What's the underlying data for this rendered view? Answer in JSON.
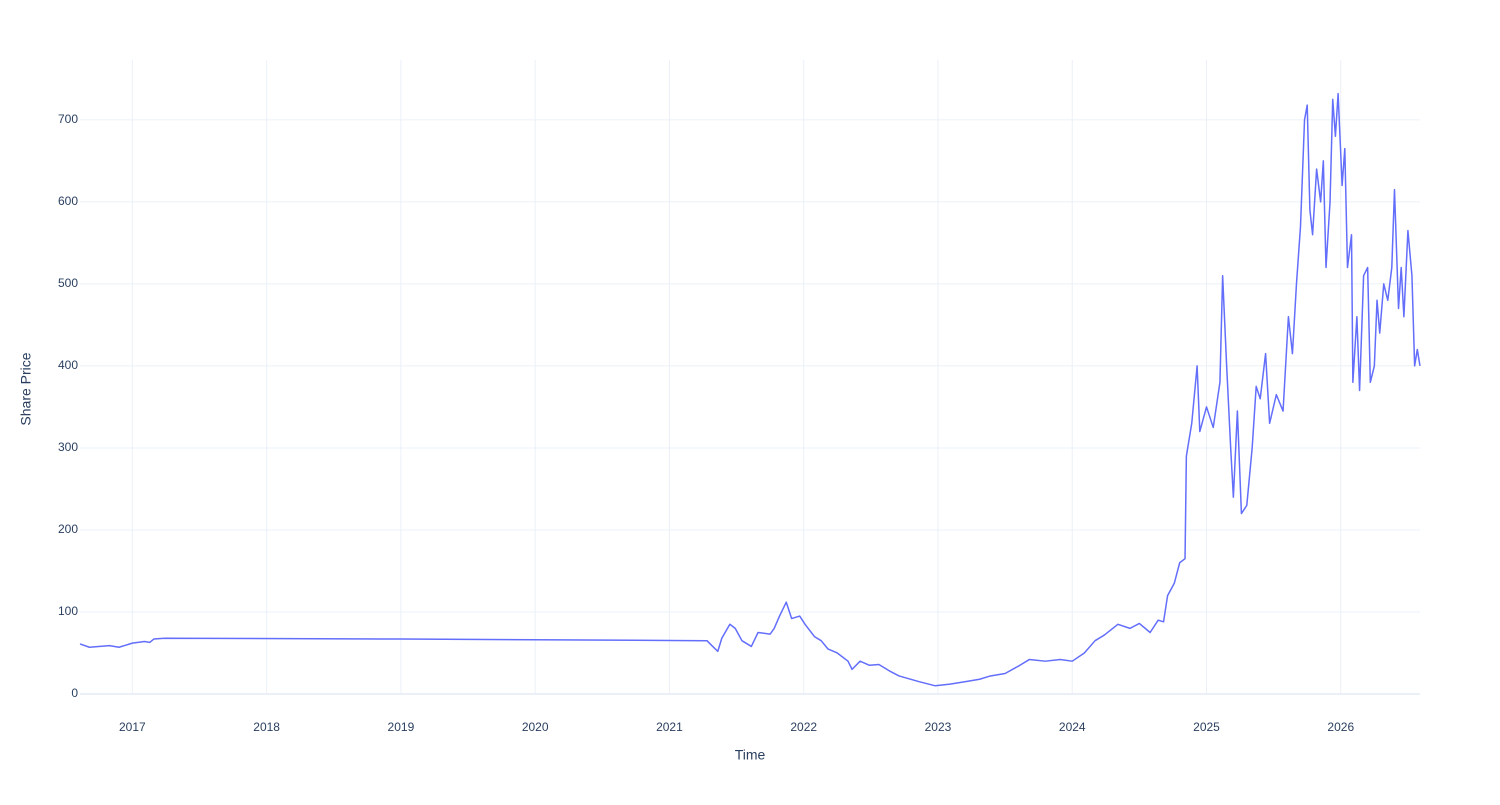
{
  "chart_data": {
    "type": "line",
    "xlabel": "Time",
    "ylabel": "Share Price",
    "color": "#636efa",
    "grid": true,
    "xlim": [
      2016.61,
      2026.59
    ],
    "ylim": [
      0,
      773
    ],
    "xticks": [
      2017,
      2018,
      2019,
      2020,
      2021,
      2022,
      2023,
      2024,
      2025,
      2026
    ],
    "yticks": [
      0,
      100,
      200,
      300,
      400,
      500,
      600,
      700
    ],
    "x": [
      2016.61,
      2016.68,
      2016.83,
      2016.9,
      2017.0,
      2017.09,
      2017.13,
      2017.16,
      2017.24,
      2019.0,
      2021.28,
      2021.31,
      2021.36,
      2021.39,
      2021.45,
      2021.49,
      2021.54,
      2021.61,
      2021.66,
      2021.75,
      2021.78,
      2021.82,
      2021.87,
      2021.91,
      2021.97,
      2022.01,
      2022.08,
      2022.13,
      2022.18,
      2022.25,
      2022.33,
      2022.36,
      2022.42,
      2022.49,
      2022.56,
      2022.64,
      2022.71,
      2022.86,
      2022.98,
      2023.09,
      2023.2,
      2023.31,
      2023.39,
      2023.5,
      2023.61,
      2023.68,
      2023.8,
      2023.91,
      2024.0,
      2024.09,
      2024.17,
      2024.24,
      2024.34,
      2024.43,
      2024.5,
      2024.58,
      2024.64,
      2024.68,
      2024.71,
      2024.76,
      2024.8,
      2024.84,
      2024.85,
      2024.89,
      2024.93,
      2024.95,
      2025.0,
      2025.05,
      2025.1,
      2025.12,
      2025.15,
      2025.18,
      2025.2,
      2025.23,
      2025.26,
      2025.3,
      2025.34,
      2025.37,
      2025.4,
      2025.44,
      2025.47,
      2025.52,
      2025.57,
      2025.61,
      2025.64,
      2025.67,
      2025.7,
      2025.73,
      2025.75,
      2025.77,
      2025.79,
      2025.82,
      2025.85,
      2025.87,
      2025.89,
      2025.92,
      2025.94,
      2025.96,
      2025.98,
      2026.01,
      2026.03,
      2026.05,
      2026.08,
      2026.09,
      2026.12,
      2026.14,
      2026.17,
      2026.2,
      2026.22,
      2026.25,
      2026.27,
      2026.29,
      2026.32,
      2026.35,
      2026.38,
      2026.4,
      2026.43,
      2026.45,
      2026.47,
      2026.5,
      2026.53,
      2026.55,
      2026.57,
      2026.59
    ],
    "values": [
      61,
      57,
      59,
      57,
      62,
      64,
      63,
      67,
      68,
      67,
      65,
      60,
      52,
      68,
      85,
      80,
      65,
      58,
      75,
      73,
      80,
      95,
      112,
      92,
      95,
      85,
      70,
      65,
      55,
      50,
      40,
      30,
      40,
      35,
      36,
      28,
      22,
      15,
      10,
      12,
      15,
      18,
      22,
      25,
      35,
      42,
      40,
      42,
      40,
      50,
      65,
      72,
      85,
      80,
      86,
      75,
      90,
      88,
      120,
      135,
      160,
      165,
      290,
      330,
      400,
      320,
      350,
      325,
      380,
      510,
      400,
      300,
      240,
      345,
      220,
      230,
      300,
      375,
      360,
      415,
      330,
      365,
      345,
      460,
      415,
      500,
      570,
      700,
      718,
      590,
      560,
      640,
      600,
      650,
      520,
      600,
      725,
      680,
      732,
      620,
      665,
      520,
      560,
      380,
      460,
      370,
      510,
      520,
      380,
      400,
      480,
      440,
      500,
      480,
      520,
      615,
      470,
      520,
      460,
      565,
      510,
      400,
      420,
      400
    ]
  }
}
